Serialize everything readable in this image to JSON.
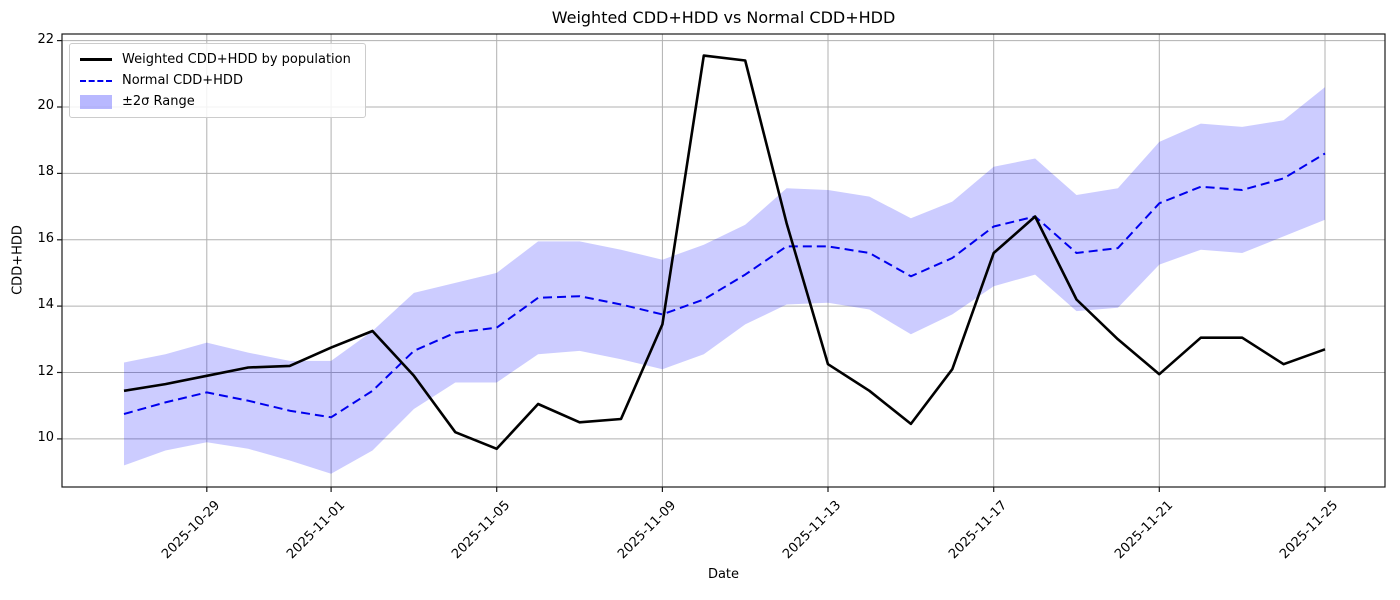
{
  "chart_data": {
    "type": "line",
    "title": "Weighted CDD+HDD vs Normal CDD+HDD",
    "xlabel": "Date",
    "ylabel": "CDD+HDD",
    "x": [
      "2025-10-27",
      "2025-10-28",
      "2025-10-29",
      "2025-10-30",
      "2025-10-31",
      "2025-11-01",
      "2025-11-02",
      "2025-11-03",
      "2025-11-04",
      "2025-11-05",
      "2025-11-06",
      "2025-11-07",
      "2025-11-08",
      "2025-11-09",
      "2025-11-10",
      "2025-11-11",
      "2025-11-12",
      "2025-11-13",
      "2025-11-14",
      "2025-11-15",
      "2025-11-16",
      "2025-11-17",
      "2025-11-18",
      "2025-11-19",
      "2025-11-20",
      "2025-11-21",
      "2025-11-22",
      "2025-11-23",
      "2025-11-24",
      "2025-11-25"
    ],
    "series": [
      {
        "name": "Weighted CDD+HDD by population",
        "style": "solid",
        "color": "#000000",
        "width": 2.6,
        "values": [
          11.45,
          11.65,
          11.9,
          12.15,
          12.2,
          12.75,
          13.25,
          11.9,
          10.2,
          9.7,
          11.05,
          10.5,
          10.6,
          13.45,
          21.55,
          21.4,
          16.5,
          12.25,
          11.45,
          10.45,
          12.1,
          15.6,
          16.7,
          14.2,
          13.0,
          11.95,
          13.05,
          13.05,
          12.25,
          12.7
        ]
      },
      {
        "name": "Normal CDD+HDD",
        "style": "dashed",
        "color": "#0000ee",
        "width": 2,
        "values": [
          10.75,
          11.1,
          11.4,
          11.15,
          10.85,
          10.65,
          11.45,
          12.65,
          13.2,
          13.35,
          14.25,
          14.3,
          14.05,
          13.75,
          14.2,
          14.95,
          15.8,
          15.8,
          15.6,
          14.9,
          15.45,
          16.4,
          16.7,
          15.6,
          15.75,
          17.1,
          17.6,
          17.5,
          17.85,
          18.6
        ]
      }
    ],
    "band": {
      "name": "±2σ Range",
      "color": "#0000ff",
      "opacity": 0.2,
      "upper": [
        12.3,
        12.55,
        12.9,
        12.6,
        12.35,
        12.35,
        13.25,
        14.4,
        14.7,
        15.0,
        15.95,
        15.95,
        15.7,
        15.4,
        15.85,
        16.45,
        17.55,
        17.5,
        17.3,
        16.65,
        17.15,
        18.2,
        18.45,
        17.35,
        17.55,
        18.95,
        19.5,
        19.4,
        19.6,
        20.6
      ],
      "lower": [
        9.2,
        9.65,
        9.9,
        9.7,
        9.35,
        8.95,
        9.65,
        10.9,
        11.7,
        11.7,
        12.55,
        12.65,
        12.4,
        12.1,
        12.55,
        13.45,
        14.05,
        14.1,
        13.9,
        13.15,
        13.75,
        14.6,
        14.95,
        13.85,
        13.95,
        15.25,
        15.7,
        15.6,
        16.1,
        16.6
      ]
    },
    "ylim": [
      8.55,
      22.2
    ],
    "yticks": [
      10,
      12,
      14,
      16,
      18,
      20,
      22
    ],
    "xticks": [
      "2025-10-29",
      "2025-11-01",
      "2025-11-05",
      "2025-11-09",
      "2025-11-13",
      "2025-11-17",
      "2025-11-21",
      "2025-11-25"
    ],
    "grid": true,
    "grid_color": "#b0b0b0",
    "spine_color": "#1a1a1a",
    "legend_position": "upper left"
  }
}
